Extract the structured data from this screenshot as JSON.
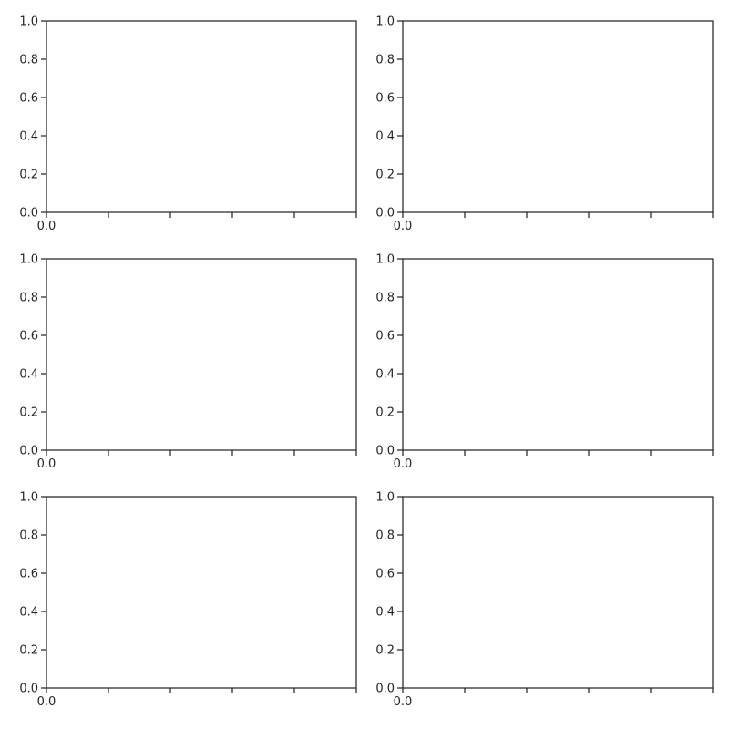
{
  "figure": {
    "background": "#ffffff",
    "axis_color": "#262626",
    "text_color": "#262626"
  },
  "chart_data": [
    {
      "type": "line",
      "title": "",
      "xlabel": "",
      "ylabel": "",
      "series": [],
      "ylim": [
        0,
        1
      ],
      "xlim": [
        0,
        1
      ],
      "yticks": [
        0.0,
        0.2,
        0.4,
        0.6,
        0.8,
        1.0
      ],
      "ytick_labels": [
        "0.0",
        "0.2",
        "0.4",
        "0.6",
        "0.8",
        "1.0"
      ],
      "xticks": [
        0.0,
        0.2,
        0.4,
        0.6,
        0.8,
        1.0
      ],
      "xtick_labels": [
        "0.0",
        "",
        "",
        "",
        "",
        ""
      ],
      "grid": false,
      "legend": "none"
    },
    {
      "type": "line",
      "title": "",
      "xlabel": "",
      "ylabel": "",
      "series": [],
      "ylim": [
        0,
        1
      ],
      "xlim": [
        0,
        1
      ],
      "yticks": [
        0.0,
        0.2,
        0.4,
        0.6,
        0.8,
        1.0
      ],
      "ytick_labels": [
        "0.0",
        "0.2",
        "0.4",
        "0.6",
        "0.8",
        "1.0"
      ],
      "xticks": [
        0.0,
        0.2,
        0.4,
        0.6,
        0.8,
        1.0
      ],
      "xtick_labels": [
        "0.0",
        "",
        "",
        "",
        "",
        ""
      ],
      "grid": false,
      "legend": "none"
    },
    {
      "type": "line",
      "title": "",
      "xlabel": "",
      "ylabel": "",
      "series": [],
      "ylim": [
        0,
        1
      ],
      "xlim": [
        0,
        1
      ],
      "yticks": [
        0.0,
        0.2,
        0.4,
        0.6,
        0.8,
        1.0
      ],
      "ytick_labels": [
        "0.0",
        "0.2",
        "0.4",
        "0.6",
        "0.8",
        "1.0"
      ],
      "xticks": [
        0.0,
        0.2,
        0.4,
        0.6,
        0.8,
        1.0
      ],
      "xtick_labels": [
        "0.0",
        "",
        "",
        "",
        "",
        ""
      ],
      "grid": false,
      "legend": "none"
    },
    {
      "type": "line",
      "title": "",
      "xlabel": "",
      "ylabel": "",
      "series": [],
      "ylim": [
        0,
        1
      ],
      "xlim": [
        0,
        1
      ],
      "yticks": [
        0.0,
        0.2,
        0.4,
        0.6,
        0.8,
        1.0
      ],
      "ytick_labels": [
        "0.0",
        "0.2",
        "0.4",
        "0.6",
        "0.8",
        "1.0"
      ],
      "xticks": [
        0.0,
        0.2,
        0.4,
        0.6,
        0.8,
        1.0
      ],
      "xtick_labels": [
        "0.0",
        "",
        "",
        "",
        "",
        ""
      ],
      "grid": false,
      "legend": "none"
    },
    {
      "type": "line",
      "title": "",
      "xlabel": "",
      "ylabel": "",
      "series": [],
      "ylim": [
        0,
        1
      ],
      "xlim": [
        0,
        1
      ],
      "yticks": [
        0.0,
        0.2,
        0.4,
        0.6,
        0.8,
        1.0
      ],
      "ytick_labels": [
        "0.0",
        "0.2",
        "0.4",
        "0.6",
        "0.8",
        "1.0"
      ],
      "xticks": [
        0.0,
        0.2,
        0.4,
        0.6,
        0.8,
        1.0
      ],
      "xtick_labels": [
        "0.0",
        "",
        "",
        "",
        "",
        ""
      ],
      "grid": false,
      "legend": "none"
    },
    {
      "type": "line",
      "title": "",
      "xlabel": "",
      "ylabel": "",
      "series": [],
      "ylim": [
        0,
        1
      ],
      "xlim": [
        0,
        1
      ],
      "yticks": [
        0.0,
        0.2,
        0.4,
        0.6,
        0.8,
        1.0
      ],
      "ytick_labels": [
        "0.0",
        "0.2",
        "0.4",
        "0.6",
        "0.8",
        "1.0"
      ],
      "xticks": [
        0.0,
        0.2,
        0.4,
        0.6,
        0.8,
        1.0
      ],
      "xtick_labels": [
        "0.0",
        "",
        "",
        "",
        "",
        ""
      ],
      "grid": false,
      "legend": "none"
    }
  ]
}
